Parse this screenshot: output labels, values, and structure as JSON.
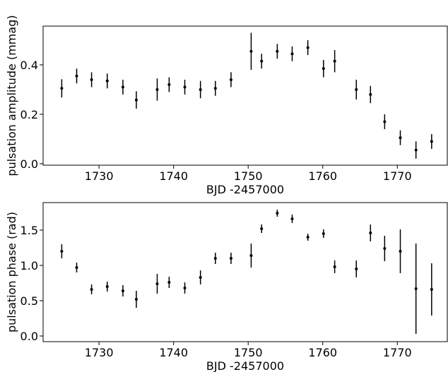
{
  "chart_data": [
    {
      "type": "errorbar",
      "color": "#000000",
      "xlabel": "BJD -2457000",
      "ylabel": "pulsation amplitude (mmag)",
      "x": [
        1725.0,
        1727.0,
        1729.0,
        1731.1,
        1733.2,
        1735.0,
        1737.8,
        1739.4,
        1741.5,
        1743.6,
        1745.6,
        1747.7,
        1750.4,
        1751.8,
        1753.9,
        1755.9,
        1758.0,
        1760.1,
        1761.6,
        1764.5,
        1766.4,
        1768.3,
        1770.4,
        1772.5,
        1774.6
      ],
      "values": [
        0.305,
        0.355,
        0.34,
        0.335,
        0.31,
        0.258,
        0.3,
        0.32,
        0.31,
        0.3,
        0.305,
        0.34,
        0.455,
        0.415,
        0.455,
        0.445,
        0.47,
        0.385,
        0.415,
        0.3,
        0.28,
        0.17,
        0.105,
        0.055,
        0.09
      ],
      "errors": [
        0.037,
        0.03,
        0.03,
        0.03,
        0.03,
        0.035,
        0.045,
        0.03,
        0.03,
        0.035,
        0.03,
        0.03,
        0.075,
        0.03,
        0.03,
        0.03,
        0.03,
        0.035,
        0.045,
        0.04,
        0.035,
        0.03,
        0.03,
        0.035,
        0.03
      ],
      "xlim": [
        1722.5,
        1776.7
      ],
      "xticks": [
        1730,
        1740,
        1750,
        1760,
        1770
      ],
      "ylim": [
        -0.006,
        0.557
      ],
      "yticks": [
        {
          "value": 0,
          "label": "0.0"
        },
        0.2,
        0.4
      ]
    },
    {
      "type": "errorbar",
      "color": "#000000",
      "xlabel": "BJD -2457000",
      "ylabel": "pulsation phase (rad)",
      "x": [
        1725.0,
        1727.0,
        1729.0,
        1731.1,
        1733.2,
        1735.0,
        1737.8,
        1739.4,
        1741.5,
        1743.6,
        1745.6,
        1747.7,
        1750.4,
        1751.8,
        1753.9,
        1755.9,
        1758.0,
        1760.1,
        1761.6,
        1764.5,
        1766.4,
        1768.3,
        1770.4,
        1772.5,
        1774.6
      ],
      "values": [
        1.2,
        0.97,
        0.66,
        0.7,
        0.64,
        0.52,
        0.74,
        0.76,
        0.68,
        0.83,
        1.1,
        1.1,
        1.14,
        1.52,
        1.74,
        1.66,
        1.4,
        1.45,
        0.98,
        0.95,
        1.46,
        1.24,
        1.2,
        0.67,
        0.66
      ],
      "errors": [
        0.1,
        0.07,
        0.07,
        0.07,
        0.08,
        0.12,
        0.14,
        0.08,
        0.08,
        0.1,
        0.08,
        0.08,
        0.17,
        0.06,
        0.05,
        0.06,
        0.05,
        0.06,
        0.09,
        0.12,
        0.12,
        0.18,
        0.31,
        0.64,
        0.37
      ],
      "xlim": [
        1722.5,
        1776.7
      ],
      "xticks": [
        1730,
        1740,
        1750,
        1760,
        1770
      ],
      "ylim": [
        -0.08,
        1.89
      ],
      "yticks": [
        {
          "value": 0,
          "label": "0.0"
        },
        0.5,
        {
          "value": 1,
          "label": "1.0"
        },
        1.5
      ]
    }
  ]
}
